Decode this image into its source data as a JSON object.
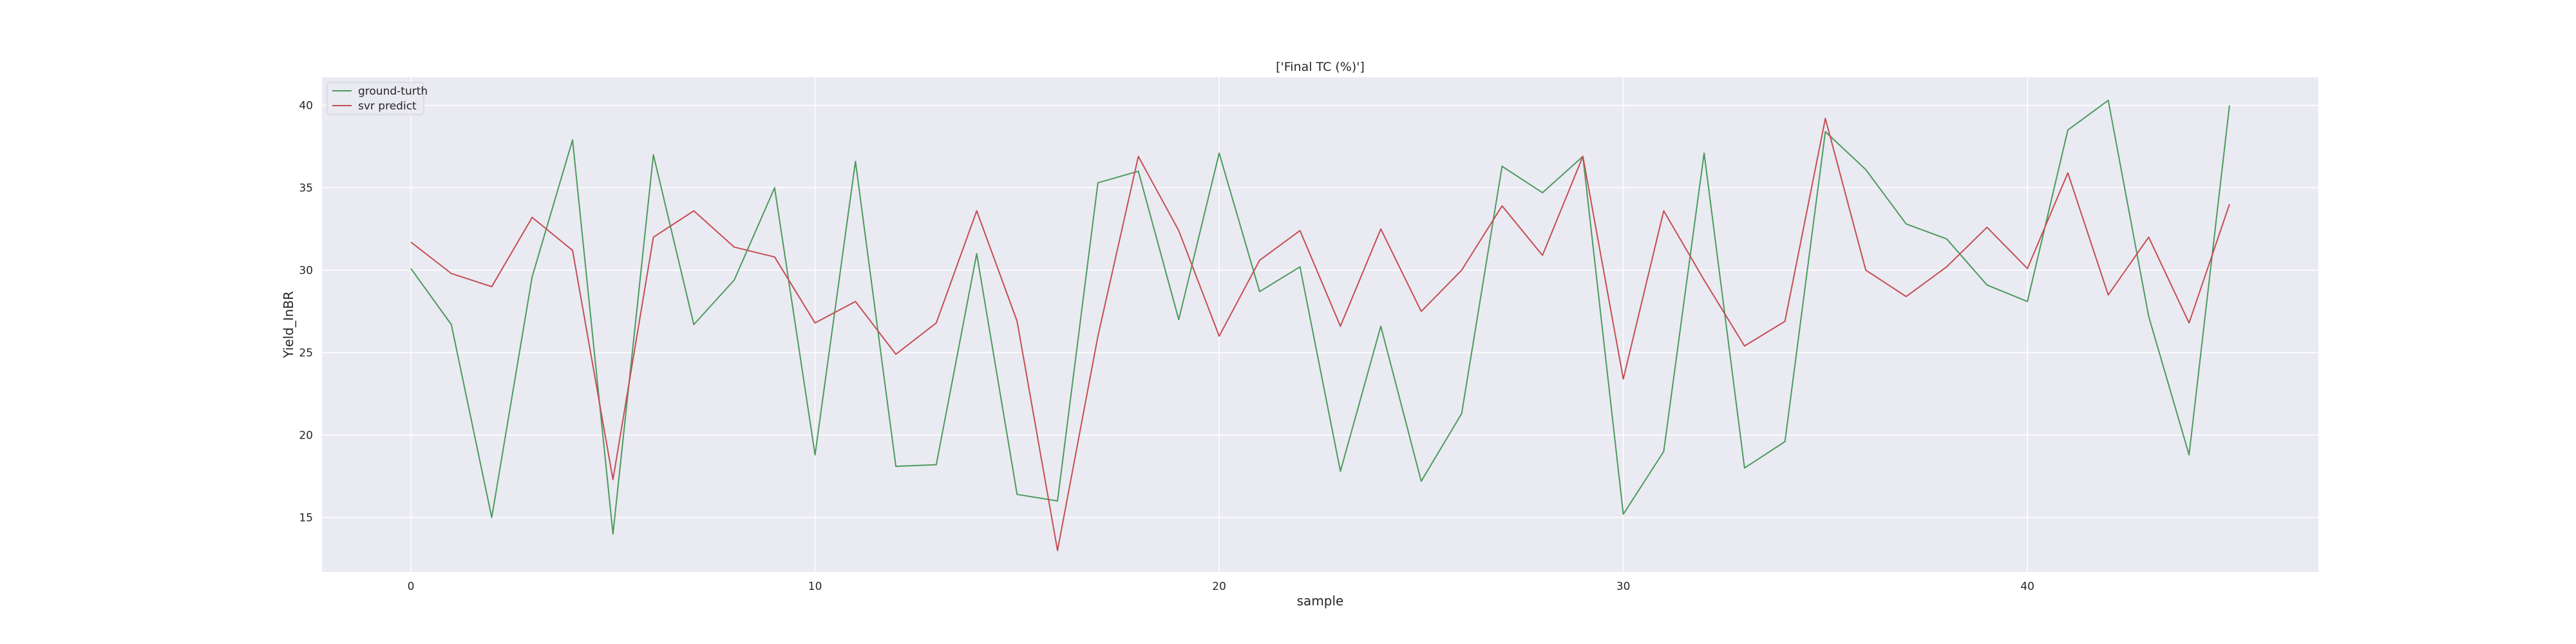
{
  "chart_data": {
    "type": "line",
    "title": "['Final TC (%)']",
    "xlabel": "sample",
    "ylabel": "Yield_InBR",
    "xlim": [
      -2.2,
      47.2
    ],
    "ylim": [
      11.7,
      41.7
    ],
    "xticks": [
      0,
      10,
      20,
      30,
      40
    ],
    "yticks": [
      15,
      20,
      25,
      30,
      35,
      40
    ],
    "grid": true,
    "legend_position": "top-left",
    "x": [
      0,
      1,
      2,
      3,
      4,
      5,
      6,
      7,
      8,
      9,
      10,
      11,
      12,
      13,
      14,
      15,
      16,
      17,
      18,
      19,
      20,
      21,
      22,
      23,
      24,
      25,
      26,
      27,
      28,
      29,
      30,
      31,
      32,
      33,
      34,
      35,
      36,
      37,
      38,
      39,
      40,
      41,
      42,
      43,
      44,
      45
    ],
    "series": [
      {
        "name": "ground-turth",
        "color": "#4c9a5d",
        "values": [
          30.1,
          26.7,
          15.0,
          29.6,
          37.9,
          14.0,
          37.0,
          26.7,
          29.4,
          35.0,
          18.8,
          36.6,
          18.1,
          18.2,
          31.0,
          16.4,
          16.0,
          35.3,
          36.0,
          27.0,
          37.1,
          28.7,
          30.2,
          17.8,
          26.6,
          17.2,
          21.3,
          36.3,
          34.7,
          36.9,
          15.2,
          19.0,
          37.1,
          18.0,
          19.6,
          38.4,
          36.1,
          32.8,
          31.9,
          29.1,
          28.1,
          38.5,
          40.3,
          27.2,
          18.8,
          40.0
        ]
      },
      {
        "name": "svr predict",
        "color": "#c44e52",
        "values": [
          31.7,
          29.8,
          29.0,
          33.2,
          31.2,
          17.3,
          32.0,
          33.6,
          31.4,
          30.8,
          26.8,
          28.1,
          24.9,
          26.8,
          33.6,
          26.9,
          13.0,
          26.0,
          36.9,
          32.4,
          26.0,
          30.6,
          32.4,
          26.6,
          32.5,
          27.5,
          30.0,
          33.9,
          30.9,
          36.9,
          23.4,
          33.6,
          29.4,
          25.4,
          26.9,
          39.2,
          30.0,
          28.4,
          30.2,
          32.6,
          30.1,
          35.9,
          28.5,
          32.0,
          26.8,
          34.0
        ]
      }
    ]
  }
}
